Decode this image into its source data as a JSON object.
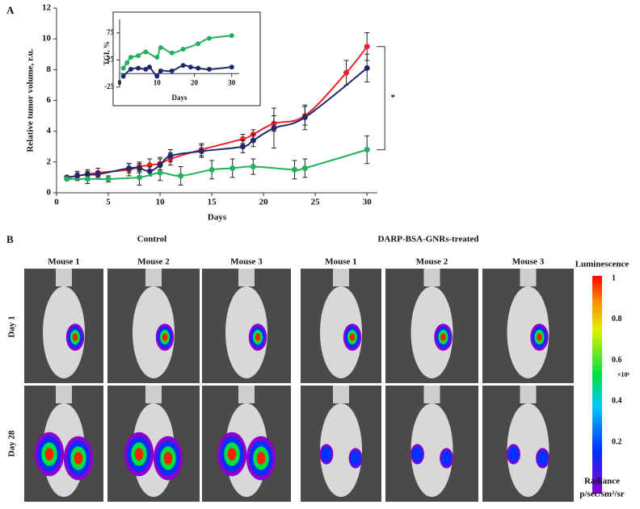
{
  "panel_labels": [
    "A",
    "B"
  ],
  "chart_data": [
    {
      "type": "line",
      "xlabel": "Days",
      "ylabel": "Relative  tumor  volume, r.u.",
      "xlim": [
        0,
        31
      ],
      "ylim": [
        0,
        12
      ],
      "xticks": [
        0,
        5,
        10,
        15,
        20,
        25,
        30
      ],
      "yticks": [
        0,
        2,
        4,
        6,
        8,
        10,
        12
      ],
      "annotation": "*",
      "series": [
        {
          "color": "#f0212a",
          "x": [
            1,
            2,
            3,
            4,
            7,
            8,
            9,
            10,
            11,
            14,
            18,
            19,
            21,
            24,
            28,
            30
          ],
          "values": [
            1.0,
            1.1,
            1.2,
            1.3,
            1.5,
            1.7,
            1.8,
            1.9,
            2.2,
            2.8,
            3.5,
            3.8,
            4.5,
            5.0,
            7.8,
            9.5
          ],
          "errors": [
            0.1,
            0.3,
            0.3,
            0.3,
            0.4,
            0.3,
            0.4,
            0.4,
            0.4,
            0.4,
            0.3,
            0.3,
            0.5,
            0.6,
            0.8,
            0.9
          ]
        },
        {
          "color": "#1f2a6e",
          "x": [
            1,
            2,
            3,
            4,
            7,
            8,
            9,
            10,
            11,
            14,
            18,
            19,
            21,
            24,
            30
          ],
          "values": [
            1.0,
            1.1,
            1.2,
            1.2,
            1.6,
            1.6,
            1.4,
            1.8,
            2.4,
            2.7,
            3.0,
            3.4,
            4.2,
            4.9,
            8.1
          ],
          "errors": [
            0.1,
            0.2,
            0.2,
            0.2,
            0.3,
            0.3,
            0.3,
            0.4,
            0.4,
            0.4,
            0.4,
            0.4,
            1.3,
            0.8,
            0.9
          ]
        },
        {
          "color": "#22b15c",
          "x": [
            1,
            3,
            5,
            8,
            10,
            12,
            15,
            17,
            19,
            23,
            24,
            30
          ],
          "values": [
            0.9,
            0.9,
            0.9,
            1.0,
            1.3,
            1.1,
            1.5,
            1.6,
            1.7,
            1.5,
            1.6,
            2.8
          ],
          "errors": [
            0.1,
            0.3,
            0.2,
            0.5,
            0.5,
            0.6,
            0.6,
            0.6,
            0.5,
            0.6,
            0.6,
            0.9
          ]
        }
      ]
    },
    {
      "type": "line",
      "xlabel": "Days",
      "ylabel": "TGI, %",
      "xlim": [
        0,
        32
      ],
      "ylim": [
        -25,
        100
      ],
      "xticks": [
        0,
        10,
        20,
        30
      ],
      "yticks": [
        -25,
        25,
        75
      ],
      "series": [
        {
          "color": "#22b15c",
          "x": [
            1,
            2,
            3,
            5,
            7,
            10,
            11,
            14,
            17,
            21,
            24,
            30
          ],
          "values": [
            10,
            20,
            30,
            33,
            40,
            30,
            48,
            38,
            45,
            55,
            65,
            70
          ]
        },
        {
          "color": "#1f2a6e",
          "x": [
            1,
            3,
            5,
            7,
            8,
            10,
            11,
            14,
            17,
            19,
            21,
            24,
            30
          ],
          "values": [
            -5,
            8,
            10,
            8,
            12,
            -5,
            5,
            5,
            15,
            12,
            10,
            8,
            12
          ]
        }
      ]
    }
  ],
  "figure": {
    "group_labels": [
      "Control",
      "DARP-BSA-GNRs-treated"
    ],
    "mouse_labels": [
      "Mouse 1",
      "Mouse 2",
      "Mouse 3",
      "Mouse 1",
      "Mouse 2",
      "Mouse 3"
    ],
    "row_labels": [
      "Day 1",
      "Day 28"
    ],
    "colorbar": {
      "title": "Luminescence",
      "lim": [
        0,
        1
      ],
      "ticks": [
        1,
        0.8,
        0.6,
        0.4,
        0.2
      ],
      "multiplier": "×10⁶",
      "unit_title": "Radiance",
      "unit": "p/sec/sm²/sr"
    }
  }
}
